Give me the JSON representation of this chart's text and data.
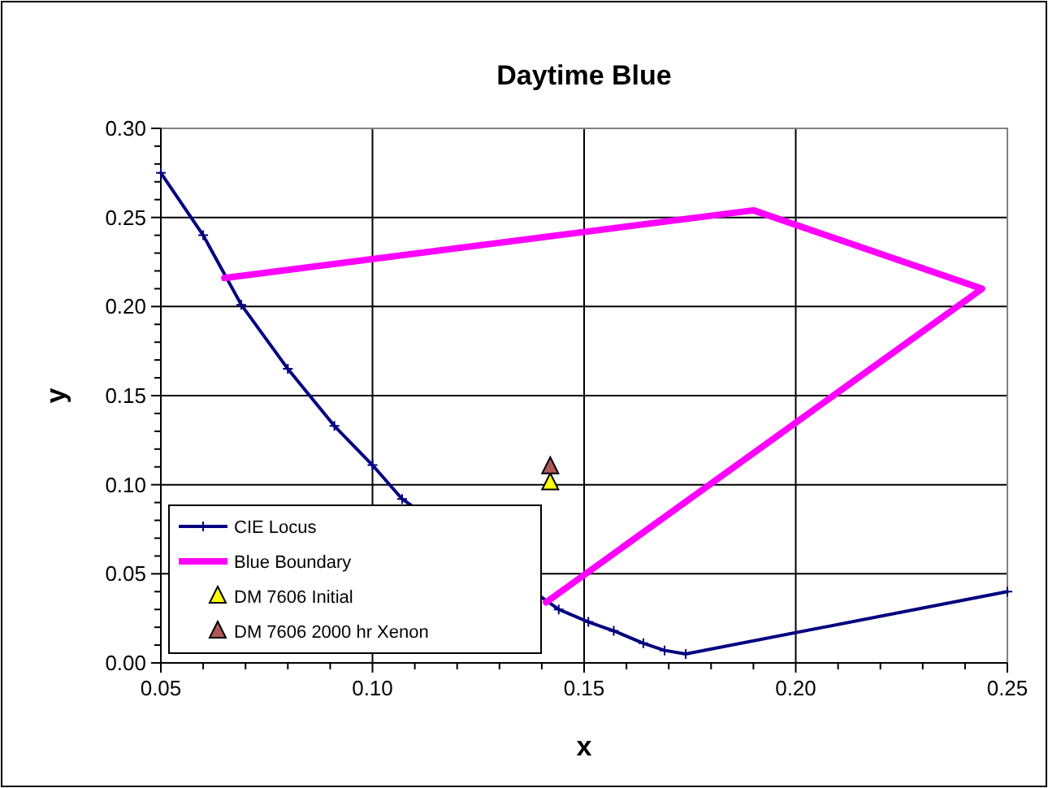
{
  "chart_data": {
    "type": "line",
    "title": "Daytime Blue",
    "xlabel": "x",
    "ylabel": "y",
    "xlim": [
      0.05,
      0.25
    ],
    "ylim": [
      0,
      0.3
    ],
    "xticks": [
      {
        "value": 0.05,
        "label": "0.05"
      },
      {
        "value": 0.06,
        "label": null
      },
      {
        "value": 0.07,
        "label": null
      },
      {
        "value": 0.08,
        "label": null
      },
      {
        "value": 0.09,
        "label": null
      },
      {
        "value": 0.1,
        "label": "0.10"
      },
      {
        "value": 0.11,
        "label": null
      },
      {
        "value": 0.12,
        "label": null
      },
      {
        "value": 0.13,
        "label": null
      },
      {
        "value": 0.14,
        "label": null
      },
      {
        "value": 0.15,
        "label": "0.15"
      },
      {
        "value": 0.16,
        "label": null
      },
      {
        "value": 0.17,
        "label": null
      },
      {
        "value": 0.18,
        "label": null
      },
      {
        "value": 0.19,
        "label": null
      },
      {
        "value": 0.2,
        "label": "0.20"
      },
      {
        "value": 0.21,
        "label": null
      },
      {
        "value": 0.22,
        "label": null
      },
      {
        "value": 0.23,
        "label": null
      },
      {
        "value": 0.24,
        "label": null
      },
      {
        "value": 0.25,
        "label": "0.25"
      }
    ],
    "yticks": [
      {
        "value": 0,
        "label": "0.00"
      },
      {
        "value": 0.01,
        "label": null
      },
      {
        "value": 0.02,
        "label": null
      },
      {
        "value": 0.03,
        "label": null
      },
      {
        "value": 0.04,
        "label": null
      },
      {
        "value": 0.05,
        "label": "0.05"
      },
      {
        "value": 0.06,
        "label": null
      },
      {
        "value": 0.07,
        "label": null
      },
      {
        "value": 0.08,
        "label": null
      },
      {
        "value": 0.09,
        "label": null
      },
      {
        "value": 0.1,
        "label": "0.10"
      },
      {
        "value": 0.11,
        "label": null
      },
      {
        "value": 0.12,
        "label": null
      },
      {
        "value": 0.13,
        "label": null
      },
      {
        "value": 0.14,
        "label": null
      },
      {
        "value": 0.15,
        "label": "0.15"
      },
      {
        "value": 0.16,
        "label": null
      },
      {
        "value": 0.17,
        "label": null
      },
      {
        "value": 0.18,
        "label": null
      },
      {
        "value": 0.19,
        "label": null
      },
      {
        "value": 0.2,
        "label": "0.20"
      },
      {
        "value": 0.21,
        "label": null
      },
      {
        "value": 0.22,
        "label": null
      },
      {
        "value": 0.23,
        "label": null
      },
      {
        "value": 0.24,
        "label": null
      },
      {
        "value": 0.25,
        "label": "0.25"
      },
      {
        "value": 0.26,
        "label": null
      },
      {
        "value": 0.27,
        "label": null
      },
      {
        "value": 0.28,
        "label": null
      },
      {
        "value": 0.29,
        "label": null
      },
      {
        "value": 0.3,
        "label": "0.30"
      }
    ],
    "grid": true,
    "legend": "bottom left",
    "series": [
      {
        "name": "CIE Locus",
        "color": "#000080",
        "marker": "cross",
        "x": [
          0.05,
          0.06,
          0.069,
          0.08,
          0.091,
          0.1,
          0.107,
          0.144,
          0.151,
          0.157,
          0.164,
          0.169,
          0.174,
          0.25
        ],
        "values": [
          0.275,
          0.24,
          0.201,
          0.165,
          0.133,
          0.111,
          0.092,
          0.03,
          0.023,
          0.018,
          0.011,
          0.007,
          0.005,
          0.04
        ]
      },
      {
        "name": "Blue Boundary",
        "color": "#ff00ff",
        "marker": "none",
        "x": [
          0.065,
          0.19,
          0.244,
          0.141
        ],
        "values": [
          0.216,
          0.254,
          0.21,
          0.034
        ]
      },
      {
        "name": "DM 7606 Initial",
        "type": "scatter",
        "color": "#ffff00",
        "marker": "triangle",
        "x": [
          0.142
        ],
        "values": [
          0.101
        ]
      },
      {
        "name": "DM 7606 2000 hr Xenon",
        "type": "scatter",
        "color": "#b05858",
        "marker": "triangle",
        "x": [
          0.142
        ],
        "values": [
          0.11
        ]
      }
    ]
  }
}
